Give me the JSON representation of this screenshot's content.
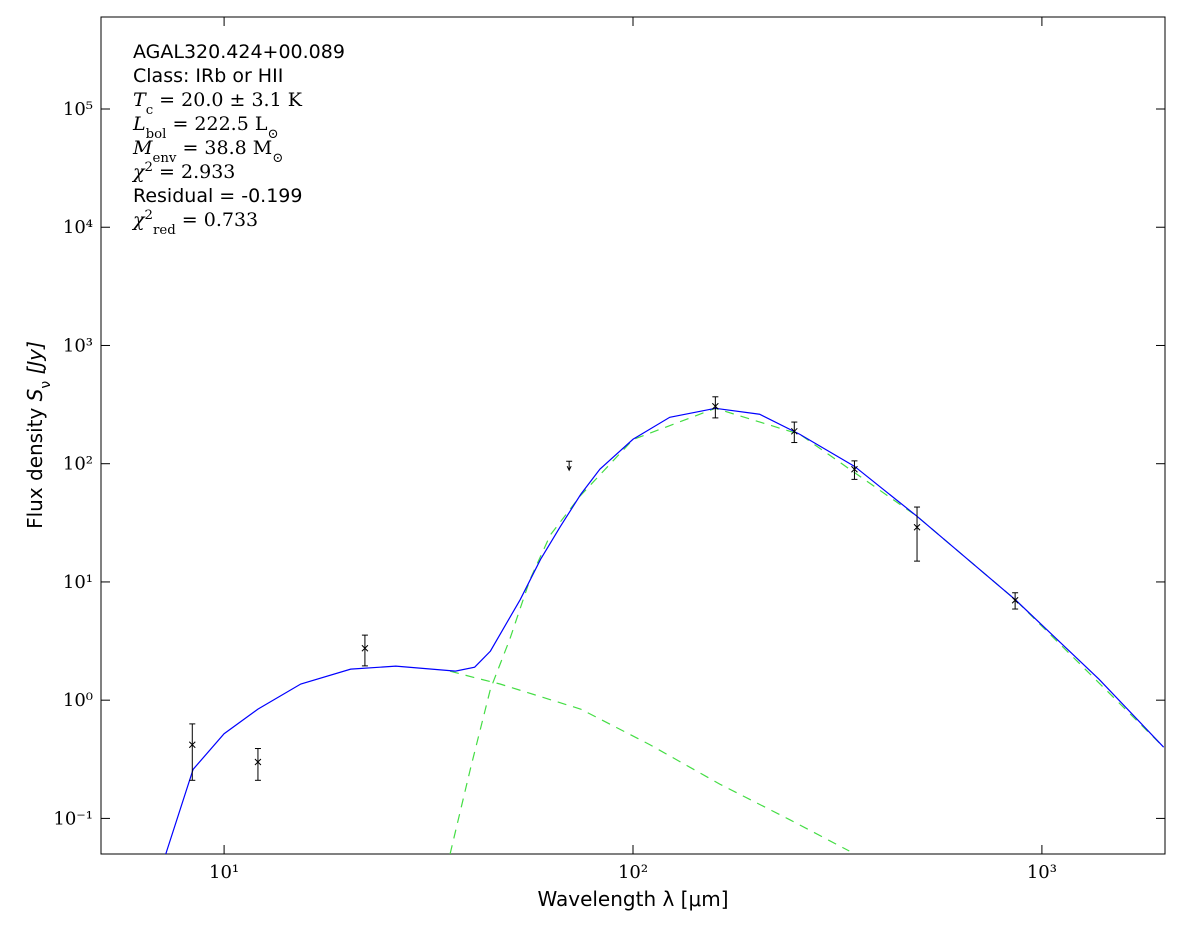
{
  "chart_data": {
    "type": "line",
    "xlabel": "Wavelength λ [μm]",
    "ylabel": [
      {
        "text": "Flux density "
      },
      {
        "text": "S",
        "pos": "italic"
      },
      {
        "text": "ν",
        "pos": "sub"
      },
      {
        "text": " [Jy]",
        "pos": "italic"
      }
    ],
    "xlog": true,
    "ylog": true,
    "xlim": [
      5,
      2000
    ],
    "ylim": [
      0.05,
      600000
    ],
    "xticks": [
      {
        "value": 10,
        "label": "10¹"
      },
      {
        "value": 100,
        "label": "10²"
      },
      {
        "value": 1000,
        "label": "10³"
      }
    ],
    "yticks": [
      {
        "value": 0.1,
        "label": "10⁻¹"
      },
      {
        "value": 1,
        "label": "10⁰"
      },
      {
        "value": 10,
        "label": "10¹"
      },
      {
        "value": 100,
        "label": "10²"
      },
      {
        "value": 1000,
        "label": "10³"
      },
      {
        "value": 10000,
        "label": "10⁴"
      },
      {
        "value": 100000,
        "label": "10⁵"
      }
    ],
    "annotations": [
      {
        "font": "sans",
        "parts": [
          {
            "text": "AGAL320.424+00.089"
          }
        ]
      },
      {
        "font": "sans",
        "parts": [
          {
            "text": "Class: IRb or HII"
          }
        ]
      },
      {
        "font": "serif",
        "parts": [
          {
            "text": "T",
            "pos": "italic"
          },
          {
            "text": "c",
            "pos": "sub"
          },
          {
            "text": " = 20.0 ± 3.1 K"
          }
        ]
      },
      {
        "font": "serif",
        "parts": [
          {
            "text": "L",
            "pos": "italic"
          },
          {
            "text": "bol",
            "pos": "sub"
          },
          {
            "text": " = 222.5 L"
          },
          {
            "text": "⊙",
            "pos": "sub"
          }
        ]
      },
      {
        "font": "serif",
        "parts": [
          {
            "text": "M",
            "pos": "italic"
          },
          {
            "text": "env",
            "pos": "sub"
          },
          {
            "text": " = 38.8 M"
          },
          {
            "text": "⊙",
            "pos": "sub"
          }
        ]
      },
      {
        "font": "serif",
        "parts": [
          {
            "text": "χ",
            "pos": "italic"
          },
          {
            "text": "2",
            "pos": "sup"
          },
          {
            "text": " = 2.933"
          }
        ]
      },
      {
        "font": "sans",
        "parts": [
          {
            "text": "Residual = -0.199"
          }
        ]
      },
      {
        "font": "serif",
        "parts": [
          {
            "text": "χ",
            "pos": "italic"
          },
          {
            "text": "2",
            "pos": "sup"
          },
          {
            "text": "red",
            "pos": "sub"
          },
          {
            "text": " = 0.733"
          }
        ]
      }
    ],
    "series": [
      {
        "color": "#44dd44",
        "dash": true,
        "x": [
          35.7,
          41,
          47.3,
          74.5,
          110,
          163,
          241,
          338
        ],
        "values": [
          1.76,
          1.55,
          1.37,
          0.84,
          0.42,
          0.195,
          0.098,
          0.053
        ]
      },
      {
        "color": "#44dd44",
        "dash": true,
        "x": [
          35.7,
          40,
          44.8,
          50,
          56,
          62.8,
          74.5,
          100,
          159,
          256,
          495,
          860,
          1985
        ],
        "values": [
          0.05,
          0.26,
          1.24,
          3.3,
          10.5,
          25,
          54,
          160,
          294,
          177,
          35.9,
          7.1,
          0.4
        ]
      },
      {
        "color": "#0000ff",
        "dash": false,
        "x": [
          7.2,
          8.4,
          10,
          12.1,
          15.4,
          20.4,
          26.3,
          36.8,
          41,
          44.8,
          47.3,
          53,
          59.4,
          66.5,
          74.5,
          83,
          100,
          123,
          159,
          204,
          256,
          348,
          495,
          860,
          1380,
          1985
        ],
        "values": [
          0.05,
          0.26,
          0.52,
          0.84,
          1.37,
          1.83,
          1.94,
          1.76,
          1.9,
          2.6,
          3.6,
          7.1,
          15.5,
          29.6,
          55,
          90,
          161,
          247,
          294,
          262,
          177,
          95,
          35.9,
          7.1,
          1.5,
          0.4
        ]
      }
    ],
    "points": {
      "color": "#000000",
      "x": [
        8.36,
        12.1,
        22.1,
        159,
        248,
        348,
        495,
        860
      ],
      "values": [
        0.42,
        0.3,
        2.75,
        306,
        188,
        89.7,
        29,
        7.0
      ],
      "errors": [
        0.21,
        0.09,
        0.8,
        62,
        37,
        16,
        14,
        1.1
      ]
    },
    "upper_limits": {
      "color": "#000000",
      "x": [
        69.8
      ],
      "values": [
        105
      ]
    }
  }
}
